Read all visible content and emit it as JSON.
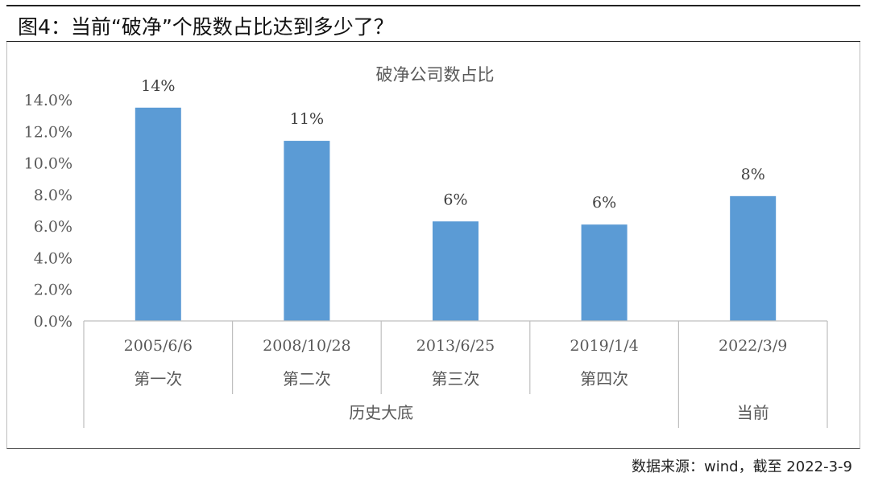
{
  "figure_title": "图4：当前“破净”个股数占比达到多少了？",
  "source_note": "数据来源：wind，截至 2022-3-9",
  "chart_data": {
    "type": "bar",
    "title": "破净公司数占比",
    "categories": [
      "2005/6/6",
      "2008/10/28",
      "2013/6/25",
      "2019/1/4",
      "2022/3/9"
    ],
    "sublabels": [
      "第一次",
      "第二次",
      "第三次",
      "第四次"
    ],
    "groups": [
      {
        "label": "历史大底",
        "span": 4
      },
      {
        "label": "当前",
        "span": 1
      }
    ],
    "values": [
      13.5,
      11.4,
      6.3,
      6.1,
      7.9
    ],
    "data_labels": [
      "14%",
      "11%",
      "6%",
      "6%",
      "8%"
    ],
    "yticks": [
      "0.0%",
      "2.0%",
      "4.0%",
      "6.0%",
      "8.0%",
      "10.0%",
      "12.0%",
      "14.0%"
    ],
    "ylim": [
      0,
      14
    ],
    "bar_color": "#5b9bd5",
    "grid": false,
    "legend": "none"
  }
}
